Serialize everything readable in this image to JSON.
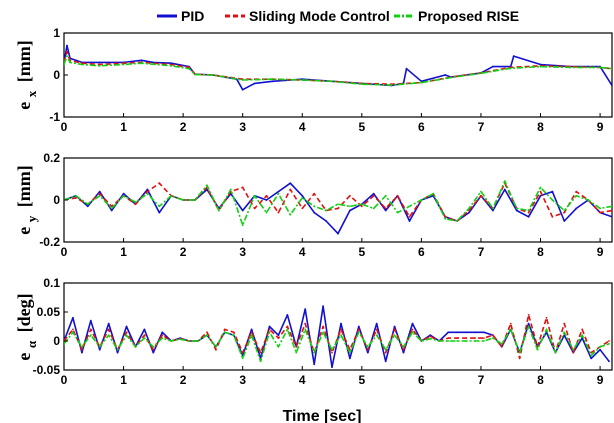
{
  "chart_data": [
    {
      "type": "line",
      "ylabel_main": "e",
      "ylabel_sub": "x",
      "ylabel_unit": "[mm]",
      "xlim": [
        0,
        9.2
      ],
      "ylim": [
        -1,
        1
      ],
      "xticks": [
        "0",
        "1",
        "2",
        "3",
        "4",
        "5",
        "6",
        "7",
        "8",
        "9"
      ],
      "yticks": [
        "-1",
        "0",
        "1"
      ],
      "series": [
        {
          "name": "PID",
          "color": "#1010d0",
          "x": [
            0,
            0.05,
            0.1,
            0.3,
            0.6,
            1.0,
            1.3,
            1.5,
            1.8,
            2.1,
            2.2,
            2.5,
            2.9,
            3.0,
            3.2,
            3.5,
            4.0,
            4.5,
            5.0,
            5.5,
            5.7,
            5.75,
            6.0,
            6.4,
            6.5,
            7.0,
            7.2,
            7.5,
            7.55,
            8.0,
            8.5,
            9.0,
            9.2
          ],
          "y": [
            0.3,
            0.7,
            0.4,
            0.3,
            0.3,
            0.3,
            0.35,
            0.3,
            0.28,
            0.2,
            0.02,
            0.0,
            -0.1,
            -0.35,
            -0.2,
            -0.15,
            -0.1,
            -0.15,
            -0.2,
            -0.25,
            -0.2,
            0.15,
            -0.15,
            0.0,
            -0.05,
            0.05,
            0.2,
            0.2,
            0.45,
            0.25,
            0.2,
            0.2,
            -0.25
          ]
        },
        {
          "name": "Sliding Mode Control",
          "color": "#e01010",
          "x": [
            0,
            0.05,
            0.1,
            0.3,
            0.6,
            1.0,
            1.3,
            1.8,
            2.1,
            2.2,
            2.5,
            3.0,
            3.5,
            4.0,
            4.5,
            5.0,
            5.5,
            6.0,
            6.5,
            7.0,
            7.5,
            8.0,
            8.5,
            9.0,
            9.2
          ],
          "y": [
            0.3,
            0.55,
            0.35,
            0.28,
            0.25,
            0.28,
            0.3,
            0.25,
            0.18,
            0.02,
            0.0,
            -0.1,
            -0.1,
            -0.12,
            -0.15,
            -0.2,
            -0.22,
            -0.18,
            -0.05,
            0.05,
            0.18,
            0.22,
            0.2,
            0.18,
            0.15
          ]
        },
        {
          "name": "Proposed RISE",
          "color": "#10d010",
          "x": [
            0,
            0.05,
            0.1,
            0.3,
            0.6,
            1.0,
            1.3,
            1.8,
            2.1,
            2.2,
            2.5,
            3.0,
            3.5,
            4.0,
            4.5,
            5.0,
            5.5,
            6.0,
            6.5,
            7.0,
            7.5,
            8.0,
            8.5,
            9.0,
            9.2
          ],
          "y": [
            0.25,
            0.45,
            0.3,
            0.25,
            0.22,
            0.25,
            0.28,
            0.22,
            0.15,
            0.01,
            0.0,
            -0.12,
            -0.1,
            -0.12,
            -0.15,
            -0.22,
            -0.24,
            -0.18,
            -0.06,
            0.04,
            0.16,
            0.2,
            0.18,
            0.18,
            0.15
          ]
        }
      ]
    },
    {
      "type": "line",
      "ylabel_main": "e",
      "ylabel_sub": "y",
      "ylabel_unit": "[mm]",
      "xlim": [
        0,
        9.2
      ],
      "ylim": [
        -0.2,
        0.2
      ],
      "xticks": [
        "0",
        "1",
        "2",
        "3",
        "4",
        "5",
        "6",
        "7",
        "8",
        "9"
      ],
      "yticks": [
        "-0.2",
        "0",
        "0.2"
      ],
      "series": [
        {
          "name": "PID",
          "color": "#1010d0",
          "x": [
            0,
            0.2,
            0.4,
            0.6,
            0.8,
            1.0,
            1.2,
            1.4,
            1.6,
            1.8,
            2.0,
            2.2,
            2.4,
            2.6,
            2.8,
            3.0,
            3.2,
            3.4,
            3.6,
            3.8,
            4.0,
            4.2,
            4.4,
            4.6,
            4.8,
            5.0,
            5.2,
            5.4,
            5.6,
            5.8,
            6.0,
            6.2,
            6.4,
            6.6,
            6.8,
            7.0,
            7.2,
            7.4,
            7.6,
            7.8,
            8.0,
            8.2,
            8.4,
            8.6,
            8.8,
            9.0,
            9.2
          ],
          "y": [
            0.0,
            0.02,
            -0.03,
            0.04,
            -0.05,
            0.03,
            -0.02,
            0.05,
            -0.06,
            0.02,
            0.0,
            0.0,
            0.05,
            -0.04,
            0.03,
            -0.05,
            0.02,
            0.0,
            0.04,
            0.08,
            0.02,
            -0.06,
            -0.1,
            -0.16,
            -0.05,
            -0.02,
            0.03,
            -0.05,
            0.02,
            -0.1,
            0.0,
            0.02,
            -0.08,
            -0.1,
            -0.06,
            0.02,
            -0.05,
            0.05,
            -0.05,
            -0.08,
            0.02,
            0.04,
            -0.1,
            -0.04,
            0.0,
            -0.06,
            -0.08
          ]
        },
        {
          "name": "Sliding Mode Control",
          "color": "#e01010",
          "x": [
            0,
            0.2,
            0.4,
            0.6,
            0.8,
            1.0,
            1.2,
            1.4,
            1.6,
            1.8,
            2.0,
            2.2,
            2.4,
            2.6,
            2.8,
            3.0,
            3.2,
            3.4,
            3.6,
            3.8,
            4.0,
            4.2,
            4.4,
            4.6,
            4.8,
            5.0,
            5.2,
            5.4,
            5.6,
            5.8,
            6.0,
            6.2,
            6.4,
            6.6,
            6.8,
            7.0,
            7.2,
            7.4,
            7.6,
            7.8,
            8.0,
            8.2,
            8.4,
            8.6,
            8.8,
            9.0,
            9.2
          ],
          "y": [
            0.0,
            0.01,
            -0.02,
            0.03,
            -0.03,
            0.02,
            -0.02,
            0.04,
            0.08,
            0.02,
            0.0,
            0.0,
            0.06,
            -0.05,
            0.04,
            0.06,
            -0.04,
            0.02,
            -0.06,
            0.05,
            -0.04,
            0.03,
            -0.05,
            -0.04,
            0.02,
            -0.03,
            0.02,
            -0.04,
            0.02,
            -0.08,
            0.0,
            0.03,
            -0.08,
            -0.1,
            -0.05,
            0.02,
            -0.04,
            0.08,
            -0.04,
            -0.06,
            0.04,
            -0.08,
            -0.06,
            0.04,
            0.0,
            -0.06,
            -0.05
          ]
        },
        {
          "name": "Proposed RISE",
          "color": "#10d010",
          "x": [
            0,
            0.2,
            0.4,
            0.6,
            0.8,
            1.0,
            1.2,
            1.4,
            1.6,
            1.8,
            2.0,
            2.2,
            2.4,
            2.6,
            2.8,
            3.0,
            3.2,
            3.4,
            3.6,
            3.8,
            4.0,
            4.2,
            4.4,
            4.6,
            4.8,
            5.0,
            5.2,
            5.4,
            5.6,
            5.8,
            6.0,
            6.2,
            6.4,
            6.6,
            6.8,
            7.0,
            7.2,
            7.4,
            7.6,
            7.8,
            8.0,
            8.2,
            8.4,
            8.6,
            8.8,
            9.0,
            9.2
          ],
          "y": [
            0.0,
            0.02,
            -0.02,
            0.02,
            -0.04,
            0.02,
            -0.01,
            0.03,
            -0.03,
            0.02,
            0.0,
            0.0,
            0.07,
            -0.05,
            0.05,
            -0.12,
            0.02,
            -0.06,
            0.03,
            -0.07,
            0.01,
            -0.03,
            -0.05,
            -0.02,
            -0.03,
            -0.02,
            -0.04,
            0.02,
            -0.06,
            -0.03,
            0.0,
            0.03,
            -0.09,
            -0.1,
            -0.04,
            0.04,
            -0.04,
            0.09,
            -0.04,
            -0.05,
            0.06,
            0.0,
            -0.05,
            0.02,
            0.0,
            -0.04,
            -0.03
          ]
        }
      ]
    },
    {
      "type": "line",
      "ylabel_main": "e",
      "ylabel_sub": "α",
      "ylabel_unit": "[deg]",
      "xlabel": "Time [sec]",
      "xlim": [
        0,
        9.2
      ],
      "ylim": [
        -0.05,
        0.1
      ],
      "xticks": [
        "0",
        "1",
        "2",
        "3",
        "4",
        "5",
        "6",
        "7",
        "8",
        "9"
      ],
      "yticks": [
        "-0.05",
        "0",
        "0.05",
        "0.1"
      ],
      "series": [
        {
          "name": "PID",
          "color": "#1010d0",
          "x": [
            0,
            0.15,
            0.3,
            0.45,
            0.6,
            0.75,
            0.9,
            1.05,
            1.2,
            1.35,
            1.5,
            1.65,
            1.8,
            1.95,
            2.1,
            2.25,
            2.4,
            2.55,
            2.7,
            2.85,
            3.0,
            3.15,
            3.3,
            3.45,
            3.6,
            3.75,
            3.9,
            4.05,
            4.2,
            4.35,
            4.5,
            4.65,
            4.8,
            4.95,
            5.1,
            5.25,
            5.4,
            5.55,
            5.7,
            5.85,
            6.0,
            6.15,
            6.3,
            6.45,
            6.6,
            6.75,
            6.9,
            7.05,
            7.2,
            7.35,
            7.5,
            7.65,
            7.8,
            7.95,
            8.1,
            8.25,
            8.4,
            8.55,
            8.7,
            8.85,
            9.0,
            9.15
          ],
          "y": [
            0.0,
            0.04,
            -0.02,
            0.035,
            -0.015,
            0.03,
            -0.02,
            0.025,
            -0.01,
            0.02,
            -0.02,
            0.015,
            0.0,
            0.005,
            0.0,
            0.0,
            0.01,
            -0.01,
            0.015,
            0.01,
            -0.025,
            0.02,
            -0.03,
            0.025,
            0.01,
            0.045,
            -0.01,
            0.055,
            -0.04,
            0.06,
            -0.045,
            0.03,
            -0.03,
            0.025,
            -0.02,
            0.03,
            -0.035,
            0.025,
            -0.02,
            0.03,
            0.0,
            0.01,
            0.0,
            0.015,
            0.015,
            0.015,
            0.015,
            0.015,
            0.01,
            -0.01,
            0.02,
            -0.02,
            0.03,
            -0.01,
            0.015,
            -0.02,
            0.01,
            -0.02,
            0.005,
            -0.03,
            -0.015,
            -0.035
          ]
        },
        {
          "name": "Sliding Mode Control",
          "color": "#e01010",
          "x": [
            0,
            0.15,
            0.3,
            0.45,
            0.6,
            0.75,
            0.9,
            1.05,
            1.2,
            1.35,
            1.5,
            1.65,
            1.8,
            1.95,
            2.1,
            2.25,
            2.4,
            2.55,
            2.7,
            2.85,
            3.0,
            3.15,
            3.3,
            3.45,
            3.6,
            3.75,
            3.9,
            4.05,
            4.2,
            4.35,
            4.5,
            4.65,
            4.8,
            4.95,
            5.1,
            5.25,
            5.4,
            5.55,
            5.7,
            5.85,
            6.0,
            6.15,
            6.3,
            6.45,
            6.6,
            6.75,
            6.9,
            7.05,
            7.2,
            7.35,
            7.5,
            7.65,
            7.8,
            7.95,
            8.1,
            8.25,
            8.4,
            8.55,
            8.7,
            8.85,
            9.0,
            9.15
          ],
          "y": [
            0.0,
            0.02,
            -0.015,
            0.02,
            -0.01,
            0.02,
            -0.015,
            0.015,
            -0.01,
            0.01,
            -0.015,
            0.01,
            0.0,
            0.004,
            0.0,
            0.0,
            0.015,
            -0.015,
            0.02,
            0.015,
            -0.02,
            0.015,
            -0.02,
            0.02,
            0.005,
            0.025,
            -0.01,
            0.03,
            -0.02,
            0.025,
            -0.02,
            0.02,
            -0.015,
            0.02,
            -0.015,
            0.02,
            -0.02,
            0.02,
            -0.015,
            0.02,
            0.0,
            0.008,
            0.0,
            0.005,
            0.005,
            0.005,
            0.005,
            0.005,
            0.01,
            -0.01,
            0.03,
            -0.03,
            0.045,
            -0.01,
            0.04,
            -0.02,
            0.03,
            -0.02,
            0.02,
            -0.02,
            -0.01,
            0.0
          ]
        },
        {
          "name": "Proposed RISE",
          "color": "#10d010",
          "x": [
            0,
            0.15,
            0.3,
            0.45,
            0.6,
            0.75,
            0.9,
            1.05,
            1.2,
            1.35,
            1.5,
            1.65,
            1.8,
            1.95,
            2.1,
            2.25,
            2.4,
            2.55,
            2.7,
            2.85,
            3.0,
            3.15,
            3.3,
            3.45,
            3.6,
            3.75,
            3.9,
            4.05,
            4.2,
            4.35,
            4.5,
            4.65,
            4.8,
            4.95,
            5.1,
            5.25,
            5.4,
            5.55,
            5.7,
            5.85,
            6.0,
            6.15,
            6.3,
            6.45,
            6.6,
            6.75,
            6.9,
            7.05,
            7.2,
            7.35,
            7.5,
            7.65,
            7.8,
            7.95,
            8.1,
            8.25,
            8.4,
            8.55,
            8.7,
            8.85,
            9.0,
            9.15
          ],
          "y": [
            -0.005,
            0.015,
            -0.01,
            0.01,
            -0.01,
            0.01,
            -0.015,
            0.01,
            -0.01,
            0.005,
            -0.01,
            0.005,
            0.0,
            0.003,
            0.0,
            0.0,
            0.01,
            -0.01,
            0.015,
            0.01,
            -0.03,
            0.01,
            -0.035,
            0.015,
            -0.01,
            0.02,
            -0.02,
            0.02,
            -0.02,
            0.015,
            -0.015,
            0.01,
            -0.02,
            0.015,
            -0.01,
            0.01,
            -0.015,
            0.01,
            -0.01,
            0.015,
            0.0,
            0.004,
            0.0,
            0.0,
            0.0,
            0.0,
            0.0,
            0.0,
            0.005,
            -0.005,
            0.02,
            -0.02,
            0.025,
            -0.015,
            0.02,
            -0.02,
            0.015,
            -0.015,
            0.01,
            -0.025,
            -0.01,
            -0.005
          ]
        }
      ]
    }
  ]
}
